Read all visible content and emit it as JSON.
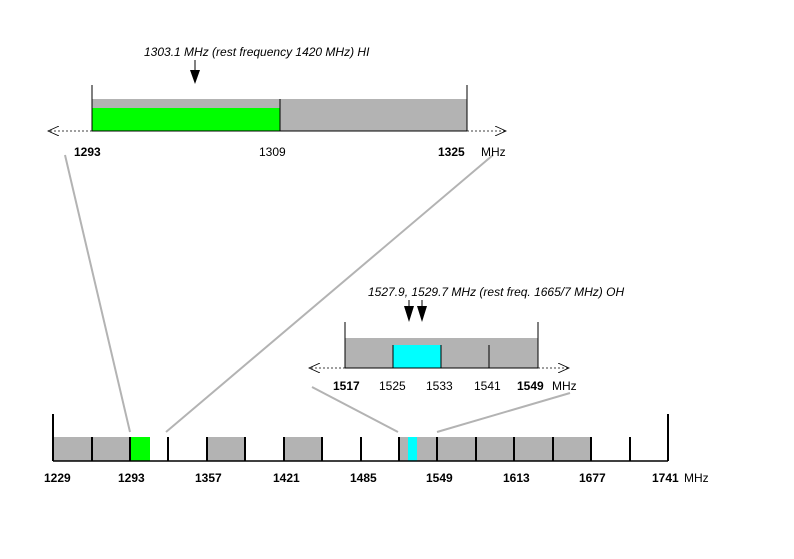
{
  "colors": {
    "gray_band": "#b3b3b3",
    "hi_band": "#00ff00",
    "oh_band": "#00ffff",
    "connector": "#b3b3b3",
    "axis": "#000000"
  },
  "top_panel": {
    "annotation": "1303.1 MHz (rest frequency 1420 MHz) HI",
    "tick_labels": {
      "left": "1293",
      "mid": "1309",
      "right": "1325"
    },
    "unit": "MHz",
    "annotation_arrow_mhz": 1303.1,
    "range_mhz": [
      1293,
      1325
    ],
    "highlight_mhz": [
      1293,
      1309
    ],
    "highlight_color": "hi_band"
  },
  "oh_panel": {
    "annotation": "1527.9, 1529.7 MHz (rest freq. 1665/7 MHz) OH",
    "tick_labels": {
      "t1517": "1517",
      "t1525": "1525",
      "t1533": "1533",
      "t1541": "1541",
      "t1549": "1549"
    },
    "unit": "MHz",
    "annotation_arrows_mhz": [
      1527.9,
      1529.7
    ],
    "range_mhz": [
      1517,
      1549
    ],
    "highlight_mhz": [
      1525,
      1533
    ],
    "highlight_color": "oh_band"
  },
  "main_axis": {
    "tick_labels": {
      "t1229": "1229",
      "t1293": "1293",
      "t1357": "1357",
      "t1421": "1421",
      "t1485": "1485",
      "t1549": "1549",
      "t1613": "1613",
      "t1677": "1677",
      "t1741": "1741"
    },
    "unit": "MHz",
    "range_mhz": [
      1229,
      1741
    ],
    "band_edges_mhz": [
      1229,
      1261,
      1293,
      1325,
      1357,
      1389,
      1421,
      1453,
      1485,
      1517,
      1549,
      1581,
      1613,
      1645,
      1677,
      1709,
      1741
    ],
    "gray_bands_mhz": [
      [
        1229,
        1293
      ],
      [
        1293,
        1309
      ],
      [
        1357,
        1389
      ],
      [
        1421,
        1453
      ],
      [
        1517,
        1645
      ]
    ],
    "hi_band_mhz": [
      1293,
      1309
    ],
    "oh_band_mhz": [
      1525,
      1533
    ]
  }
}
